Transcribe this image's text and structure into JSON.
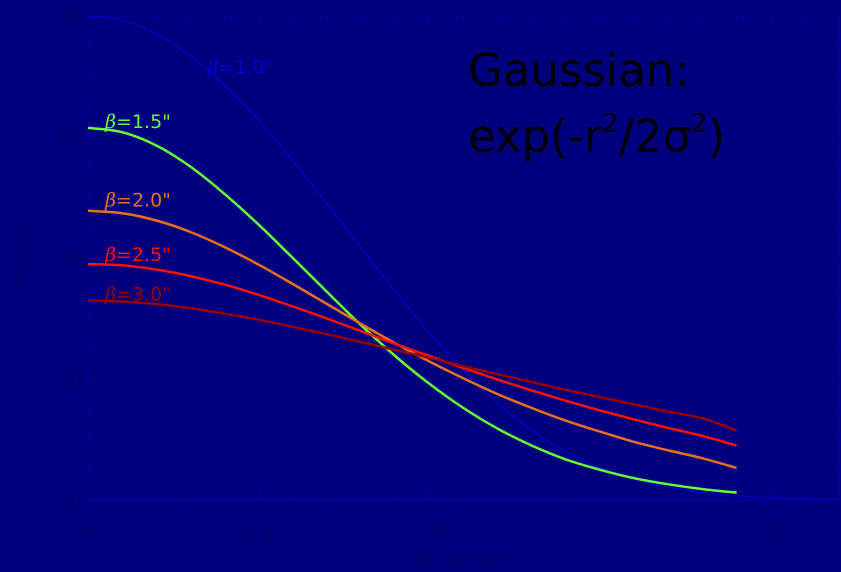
{
  "chart_data": {
    "type": "line",
    "title": "",
    "xlabel": "Δx (arcsec)",
    "ylabel": "flux (%)",
    "xlim": [
      0,
      2.2
    ],
    "ylim": [
      0,
      80
    ],
    "xticks": [
      0.0,
      0.5,
      1.0,
      1.5,
      2.0
    ],
    "xtick_labels": [
      "0.0",
      "0.5",
      "1.0",
      "1.5",
      "2.0"
    ],
    "yticks": [
      0,
      20,
      40,
      60,
      80
    ],
    "ytick_labels": [
      "0",
      "20",
      "40",
      "60",
      "80"
    ],
    "grid": false,
    "series": [
      {
        "name": "β=1.0\"",
        "label_prefix": "β",
        "label_suffix": "=1.0\"",
        "color": "#0000cc",
        "label_at": [
          0.35,
          70.5
        ],
        "x": [
          0,
          0.1,
          0.2,
          0.3,
          0.4,
          0.5,
          0.6,
          0.7,
          0.8,
          0.9,
          1.0,
          1.1,
          1.2,
          1.3,
          1.4,
          1.5,
          1.6,
          1.7,
          1.8,
          1.9,
          2.0,
          2.1,
          2.2
        ],
        "values": [
          80,
          79.3,
          77.0,
          73.4,
          68.6,
          62.8,
          56.1,
          49.0,
          41.7,
          34.5,
          27.6,
          21.4,
          16.0,
          11.5,
          8.0,
          5.3,
          3.4,
          2.1,
          1.2,
          0.7,
          0.4,
          0.2,
          0.1
        ]
      },
      {
        "name": "β=1.5\"",
        "label_prefix": "β",
        "label_suffix": "=1.5\"",
        "color": "#66ff33",
        "label_at": [
          0.05,
          61.5
        ],
        "x": [
          0,
          0.1,
          0.2,
          0.3,
          0.4,
          0.5,
          0.6,
          0.7,
          0.8,
          0.9,
          1.0,
          1.1,
          1.2,
          1.3,
          1.4,
          1.5,
          1.6,
          1.7,
          1.8,
          1.9
        ],
        "values": [
          61.5,
          60.8,
          58.6,
          55.1,
          50.6,
          45.5,
          40.0,
          34.4,
          28.9,
          23.8,
          19.2,
          15.2,
          11.8,
          9.0,
          6.7,
          5.0,
          3.6,
          2.6,
          1.8,
          1.2
        ]
      },
      {
        "name": "β=2.0\"",
        "label_prefix": "β",
        "label_suffix": "=2.0\"",
        "color": "#e8701a",
        "label_at": [
          0.05,
          48.5
        ],
        "x": [
          0,
          0.1,
          0.2,
          0.3,
          0.4,
          0.5,
          0.6,
          0.7,
          0.8,
          0.9,
          1.0,
          1.1,
          1.2,
          1.3,
          1.4,
          1.5,
          1.6,
          1.7,
          1.8,
          1.9
        ],
        "values": [
          47.8,
          47.4,
          46.2,
          44.3,
          41.8,
          38.9,
          35.7,
          32.4,
          29.1,
          25.9,
          22.9,
          20.1,
          17.5,
          15.2,
          13.1,
          11.3,
          9.6,
          8.2,
          6.9,
          5.3
        ]
      },
      {
        "name": "β=2.5\"",
        "label_prefix": "β",
        "label_suffix": "=2.5\"",
        "color": "#ff1100",
        "label_at": [
          0.05,
          39.5
        ],
        "x": [
          0,
          0.1,
          0.2,
          0.3,
          0.4,
          0.5,
          0.6,
          0.7,
          0.8,
          0.9,
          1.0,
          1.1,
          1.2,
          1.3,
          1.4,
          1.5,
          1.6,
          1.7,
          1.8,
          1.9
        ],
        "values": [
          39.0,
          38.8,
          38.1,
          37.0,
          35.6,
          33.9,
          32.0,
          30.0,
          27.9,
          25.8,
          23.8,
          21.8,
          19.9,
          18.1,
          16.4,
          14.8,
          13.3,
          11.9,
          10.6,
          9.0
        ]
      },
      {
        "name": "β=3.0\"",
        "label_prefix": "β",
        "label_suffix": "=3.0\"",
        "color": "#990000",
        "label_at": [
          0.05,
          33.0
        ],
        "x": [
          0,
          0.1,
          0.2,
          0.3,
          0.4,
          0.5,
          0.6,
          0.7,
          0.8,
          0.9,
          1.0,
          1.1,
          1.2,
          1.3,
          1.4,
          1.5,
          1.6,
          1.7,
          1.8,
          1.9
        ],
        "values": [
          33.0,
          32.8,
          32.4,
          31.7,
          30.8,
          29.8,
          28.6,
          27.4,
          26.1,
          24.8,
          23.5,
          22.1,
          20.8,
          19.5,
          18.2,
          17.0,
          15.8,
          14.6,
          13.5,
          11.5
        ]
      }
    ],
    "annotation": {
      "line1": "Gaussian:",
      "line2_prefix": "exp(-r",
      "sup1": "2",
      "line2_mid": "/2σ",
      "sup2": "2",
      "line2_suffix": ")"
    }
  }
}
